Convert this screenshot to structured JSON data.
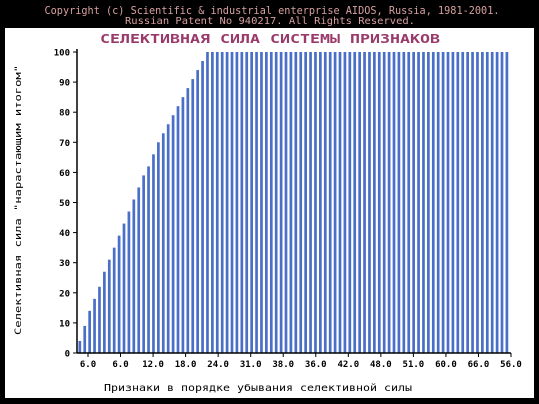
{
  "header": {
    "copyright": "Copyright (c) Scientific & industrial enterprise AIDOS, Russia, 1981-2001.",
    "patent": "Russian Patent No 940217. All Rights Reserved."
  },
  "colors": {
    "background": "#000000",
    "header_text": "#d8a0a0",
    "plot_background": "#ffffff",
    "bar": "#4a6fc8",
    "axis": "#000000"
  },
  "chart_data": {
    "type": "bar",
    "title": "СЕЛЕКТИВНАЯ СИЛА СИСТЕМЫ ПРИЗНАКОВ",
    "xlabel": "Признаки в порядке убывания селективной силы",
    "ylabel": "Селективная сила \"нарастающим итогом\"",
    "ylim": [
      0,
      100
    ],
    "yticks": [
      0,
      10,
      20,
      30,
      40,
      50,
      60,
      70,
      80,
      90,
      100
    ],
    "xtick_labels": [
      "6.0",
      "6.0",
      "12.0",
      "18.0",
      "24.0",
      "31.0",
      "38.0",
      "36.0",
      "42.0",
      "48.0",
      "51.0",
      "60.0",
      "66.0",
      "56.0"
    ],
    "grid": false,
    "values": [
      4,
      9,
      14,
      18,
      22,
      27,
      31,
      35,
      39,
      43,
      47,
      51,
      55,
      59,
      62,
      66,
      70,
      73,
      76,
      79,
      82,
      85,
      88,
      91,
      94,
      97,
      100,
      100,
      100,
      100,
      100,
      100,
      100,
      100,
      100,
      100,
      100,
      100,
      100,
      100,
      100,
      100,
      100,
      100,
      100,
      100,
      100,
      100,
      100,
      100,
      100,
      100,
      100,
      100,
      100,
      100,
      100,
      100,
      100,
      100,
      100,
      100,
      100,
      100,
      100,
      100,
      100,
      100,
      100,
      100,
      100,
      100,
      100,
      100,
      100,
      100,
      100,
      100,
      100,
      100,
      100,
      100,
      100,
      100,
      100,
      100,
      100,
      100
    ]
  }
}
